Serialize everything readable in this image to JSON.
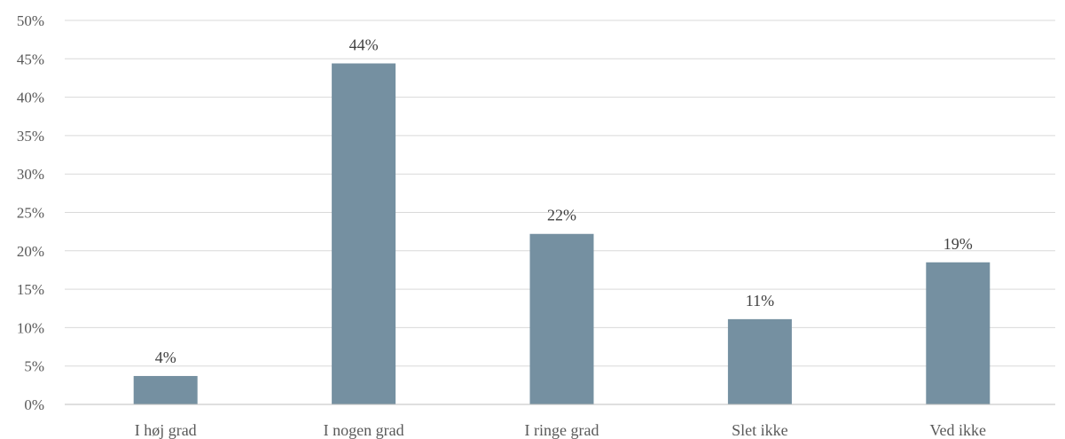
{
  "chart_data": {
    "type": "bar",
    "categories": [
      "I høj grad",
      "I nogen grad",
      "I ringe grad",
      "Slet ikke",
      "Ved ikke"
    ],
    "values": [
      3.7,
      44.4,
      22.2,
      11.1,
      18.5
    ],
    "data_labels": [
      "4%",
      "44%",
      "22%",
      "11%",
      "19%"
    ],
    "ylim": [
      0,
      50
    ],
    "y_ticks": [
      0,
      5,
      10,
      15,
      20,
      25,
      30,
      35,
      40,
      45,
      50
    ],
    "y_tick_labels": [
      "0%",
      "5%",
      "10%",
      "15%",
      "20%",
      "25%",
      "30%",
      "35%",
      "40%",
      "45%",
      "50%"
    ],
    "grid": true,
    "bar_color": "#7590a1",
    "title": "",
    "xlabel": "",
    "ylabel": ""
  }
}
